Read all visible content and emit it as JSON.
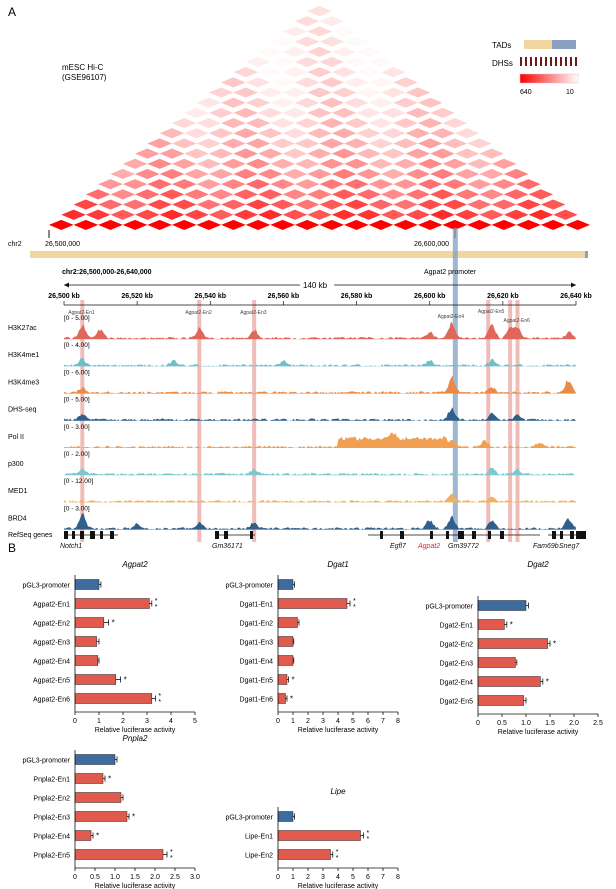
{
  "panels": {
    "a": "A",
    "b": "B"
  },
  "hic": {
    "label_line1": "mESC Hi-C",
    "label_line2": "(GSE96107)",
    "legend": {
      "tads_label": "TADs",
      "dhs_label": "DHSs",
      "max": "640",
      "min": "10"
    },
    "chr_label": "chr2",
    "ticks": [
      "26,500,000",
      "26,600,000"
    ]
  },
  "browser": {
    "region": "chr2:26,500,000-26,640,000",
    "span": "140 kb",
    "promoter_label": "Agpat2 promoter",
    "ticks": [
      "26,500 kb",
      "26,520 kb",
      "26,540 kb",
      "26,560 kb",
      "26,580 kb",
      "26,600 kb",
      "26,620 kb",
      "26,640 kb"
    ],
    "enhancer_labels": [
      "Agpat2-En1",
      "Agpat2-En2",
      "Agpat2-En3",
      "Agpat2-En4",
      "Agpat2-En5",
      "Agpat2-En6"
    ],
    "tracks": [
      {
        "name": "H3K27ac",
        "range": "[0 - 5.00]",
        "color": "#e0675a"
      },
      {
        "name": "H3K4me1",
        "range": "[0 - 4.00]",
        "color": "#6fbfc8"
      },
      {
        "name": "H3K4me3",
        "range": "[0 - 6.00]",
        "color": "#e98a45"
      },
      {
        "name": "DHS-seq",
        "range": "[0 - 5.00]",
        "color": "#2f5f8a"
      },
      {
        "name": "Pol II",
        "range": "[0 - 3.00]",
        "color": "#f0a050"
      },
      {
        "name": "p300",
        "range": "[0 - 2.00]",
        "color": "#7cc8cc"
      },
      {
        "name": "MED1",
        "range": "[0 - 12.00]",
        "color": "#f0b060"
      },
      {
        "name": "BRD4",
        "range": "[0 - 3.00]",
        "color": "#2f5f8a"
      }
    ],
    "refseq_label": "RefSeq genes",
    "genes": [
      "Notch1",
      "Gm36171",
      "Egfl7",
      "Agpat2",
      "Gm39772",
      "Fam69b",
      "Sneg7"
    ]
  },
  "colors": {
    "bar_red": "#e05a4d",
    "bar_blue": "#3e6b9e",
    "highlight_red": "#e8a09a",
    "highlight_blue": "#7f9fc4",
    "tad_tan": "#f1d79f",
    "tad_blue": "#8aa0c0",
    "gene_red": "#d92b2b"
  },
  "chart_data": [
    {
      "type": "bar",
      "orientation": "horizontal",
      "title": "Agpat2",
      "xlabel": "Relative luciferase activity",
      "xlim": [
        0,
        5
      ],
      "ticks": [
        "0",
        "1",
        "2",
        "3",
        "4",
        "5"
      ],
      "categories": [
        "pGL3-promoter",
        "Agpat2-En1",
        "Agpat2-En2",
        "Agpat2-En3",
        "Agpat2-En4",
        "Agpat2-En5",
        "Agpat2-En6"
      ],
      "values": [
        1.0,
        3.1,
        1.2,
        0.9,
        0.95,
        1.7,
        3.2
      ],
      "errors": [
        0.08,
        0.1,
        0.2,
        0.1,
        0.05,
        0.2,
        0.15
      ],
      "significance": [
        "",
        "**",
        "*",
        "",
        "",
        "*",
        "**"
      ]
    },
    {
      "type": "bar",
      "orientation": "horizontal",
      "title": "Dgat1",
      "xlabel": "Relative luciferase activity",
      "xlim": [
        0,
        8
      ],
      "ticks": [
        "0",
        "1",
        "2",
        "3",
        "4",
        "5",
        "6",
        "7",
        "8"
      ],
      "categories": [
        "pGL3-promoter",
        "Dgat1-En1",
        "Dgat1-En2",
        "Dgat1-En3",
        "Dgat1-En4",
        "Dgat1-En5",
        "Dgat1-En6"
      ],
      "values": [
        1.0,
        4.6,
        1.3,
        1.0,
        1.0,
        0.6,
        0.5
      ],
      "errors": [
        0.1,
        0.2,
        0.1,
        0.05,
        0.05,
        0.1,
        0.1
      ],
      "significance": [
        "",
        "**",
        "",
        "",
        "",
        "*",
        "*"
      ]
    },
    {
      "type": "bar",
      "orientation": "horizontal",
      "title": "Dgat2",
      "xlabel": "Relative luciferase activity",
      "xlim": [
        0,
        2.5
      ],
      "ticks": [
        "0",
        "0.5",
        "1.0",
        "1.5",
        "2.0",
        "2.5"
      ],
      "categories": [
        "pGL3-promoter",
        "Dgat2-En1",
        "Dgat2-En2",
        "Dgat2-En3",
        "Dgat2-En4",
        "Dgat2-En5"
      ],
      "values": [
        1.0,
        0.55,
        1.45,
        0.78,
        1.3,
        0.95
      ],
      "errors": [
        0.05,
        0.05,
        0.05,
        0.03,
        0.05,
        0.05
      ],
      "significance": [
        "",
        "*",
        "*",
        "",
        "*",
        ""
      ]
    },
    {
      "type": "bar",
      "orientation": "horizontal",
      "title": "Pnpla2",
      "xlabel": "Relative luciferase activity",
      "xlim": [
        0,
        3.0
      ],
      "ticks": [
        "0",
        "0.5",
        "1.0",
        "1.5",
        "2.0",
        "2.5",
        "3.0"
      ],
      "categories": [
        "pGL3-promoter",
        "Pnpla2-En1",
        "Pnpla2-En2",
        "Pnpla2-En3",
        "Pnpla2-En4",
        "Pnpla2-En5"
      ],
      "values": [
        1.0,
        0.7,
        1.15,
        1.3,
        0.4,
        2.2
      ],
      "errors": [
        0.05,
        0.05,
        0.05,
        0.05,
        0.05,
        0.1
      ],
      "significance": [
        "",
        "*",
        "",
        "*",
        "*",
        "**"
      ]
    },
    {
      "type": "bar",
      "orientation": "horizontal",
      "title": "Lipe",
      "xlabel": "Relative luciferase activity",
      "xlim": [
        0,
        8
      ],
      "ticks": [
        "0",
        "1",
        "2",
        "3",
        "4",
        "5",
        "6",
        "7",
        "8"
      ],
      "categories": [
        "pGL3-promoter",
        "Lipe-En1",
        "Lipe-En2"
      ],
      "values": [
        1.0,
        5.5,
        3.5
      ],
      "errors": [
        0.1,
        0.2,
        0.15
      ],
      "significance": [
        "",
        "**",
        "**"
      ]
    }
  ]
}
